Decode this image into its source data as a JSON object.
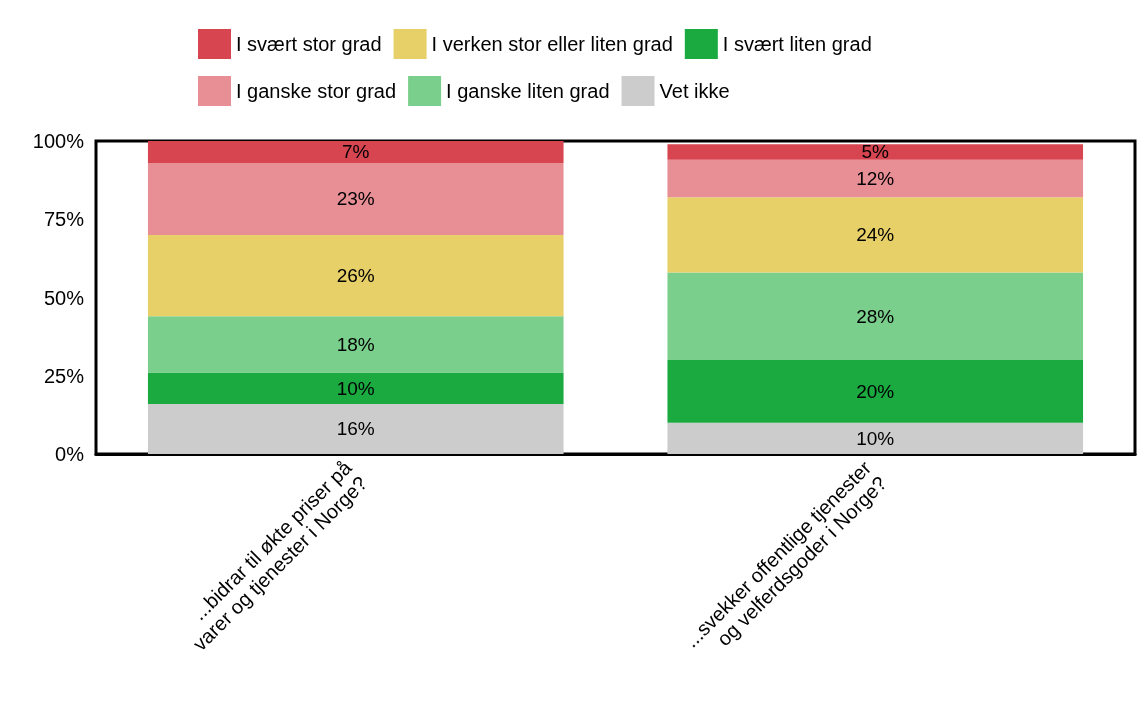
{
  "chart_data": {
    "type": "bar",
    "stacked": true,
    "legend": "top",
    "grid": false,
    "categories": [
      "...bidrar til økte priser på\nvarer og tjenester i Norge?",
      "...svekker offentlige tjenester\nog velferdsgoder i Norge?"
    ],
    "ylim": [
      0,
      100
    ],
    "yticks": [
      {
        "value": 0,
        "label": "0%"
      },
      {
        "value": 25,
        "label": "25%"
      },
      {
        "value": 50,
        "label": "50%"
      },
      {
        "value": 75,
        "label": "75%"
      },
      {
        "value": 100,
        "label": "100%"
      }
    ],
    "series": [
      {
        "name": "Vet ikke",
        "color": "#cccccc",
        "values": [
          16,
          10
        ],
        "value_labels": [
          "16%",
          "10%"
        ]
      },
      {
        "name": "I svært liten grad",
        "color": "#1aaa40",
        "values": [
          10,
          20
        ],
        "value_labels": [
          "10%",
          "20%"
        ]
      },
      {
        "name": "I ganske liten grad",
        "color": "#7acf8c",
        "values": [
          18,
          28
        ],
        "value_labels": [
          "18%",
          "28%"
        ]
      },
      {
        "name": "I verken stor eller liten grad",
        "color": "#e8d068",
        "values": [
          26,
          24
        ],
        "value_labels": [
          "26%",
          "24%"
        ]
      },
      {
        "name": "I ganske stor grad",
        "color": "#e88f96",
        "values": [
          23,
          12
        ],
        "value_labels": [
          "23%",
          "12%"
        ]
      },
      {
        "name": "I svært stor grad",
        "color": "#d64550",
        "values": [
          7,
          5
        ],
        "value_labels": [
          "7%",
          "5%"
        ]
      }
    ]
  }
}
